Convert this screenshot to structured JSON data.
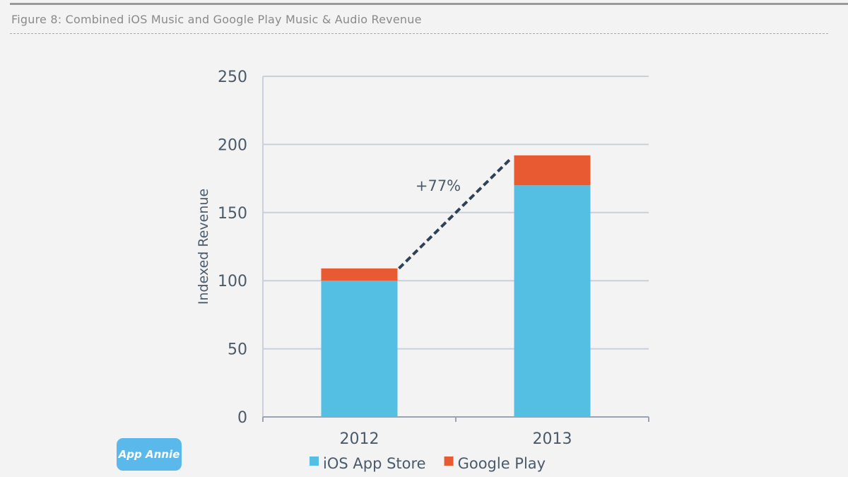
{
  "figure_title": "Figure 8: Combined iOS Music and Google Play Music & Audio Revenue",
  "logo_text": "App Annie",
  "colors": {
    "ios": "#55bfe3",
    "google": "#e85a31",
    "grid": "#c9d0da",
    "axis_text": "#4a5a6a",
    "dash": "#2e4156"
  },
  "chart_data": {
    "type": "bar",
    "stacked": true,
    "title": "Figure 8: Combined iOS Music and Google Play Music & Audio Revenue",
    "xlabel": "",
    "ylabel": "Indexed Revenue",
    "ylim": [
      0,
      250
    ],
    "yticks": [
      "0",
      "50",
      "100",
      "150",
      "200",
      "250"
    ],
    "categories": [
      "2012",
      "2013"
    ],
    "series": [
      {
        "name": "iOS App Store",
        "values": [
          100,
          170
        ]
      },
      {
        "name": "Google Play",
        "values": [
          9,
          22
        ]
      }
    ],
    "annotation": "+77%",
    "grid": true,
    "legend": "bottom"
  }
}
